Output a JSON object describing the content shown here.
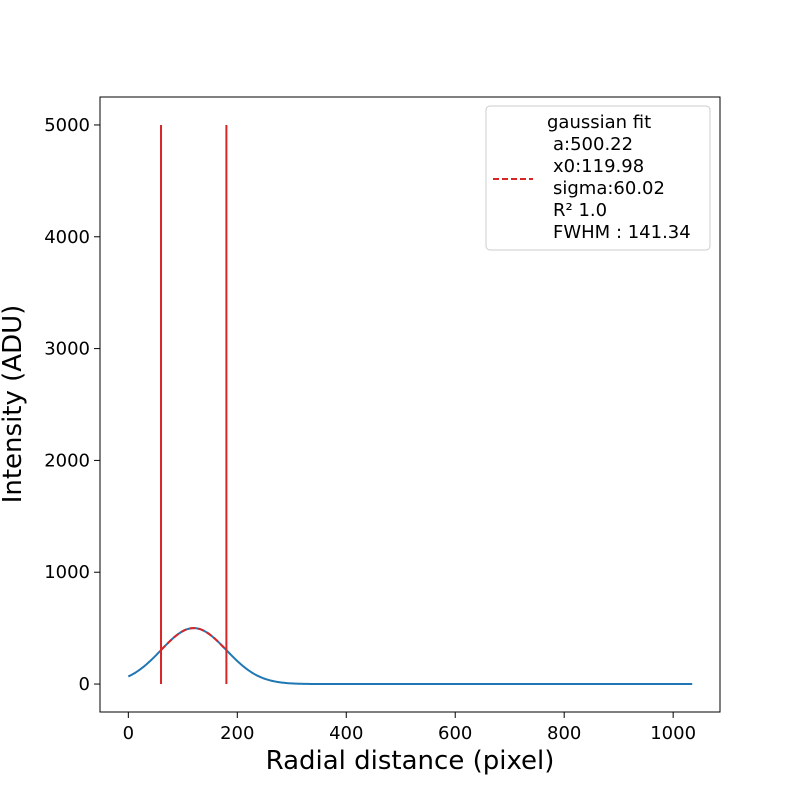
{
  "chart_data": {
    "type": "line",
    "xlabel": "Radial distance (pixel)",
    "ylabel": "Intensity (ADU)",
    "xlim": [
      -52,
      1086
    ],
    "ylim": [
      -250,
      5250
    ],
    "x_ticks": [
      0,
      200,
      400,
      600,
      800,
      1000
    ],
    "y_ticks": [
      0,
      1000,
      2000,
      3000,
      4000,
      5000
    ],
    "grid": false,
    "legend_position": "top-right",
    "legend": {
      "label_lines": [
        "gaussian fit",
        "a:500.22",
        "x0:119.98",
        "sigma:60.02",
        "R² 1.0",
        "FWHM : 141.34"
      ]
    },
    "profile": {
      "color": "#1f77b4",
      "x_range": [
        0,
        1035
      ],
      "gaussian": {
        "a": 500.22,
        "x0": 119.98,
        "sigma": 60.02
      }
    },
    "fit": {
      "color": "#d62728",
      "style": "dashed",
      "x_range": [
        60,
        180
      ],
      "gaussian": {
        "a": 500.22,
        "x0": 119.98,
        "sigma": 60.02
      }
    },
    "vertical_lines": [
      {
        "x": 60,
        "y_from": 0,
        "y_to": 5000,
        "color": "#d62728"
      },
      {
        "x": 180,
        "y_from": 0,
        "y_to": 5000,
        "color": "#d62728"
      }
    ]
  }
}
